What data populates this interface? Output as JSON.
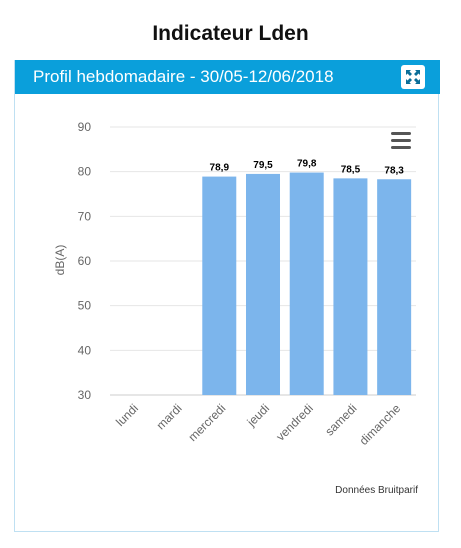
{
  "page": {
    "title": "Indicateur Lden"
  },
  "panel": {
    "title": "Profil hebdomadaire - 30/05-12/06/2018",
    "expand_icon": "fullscreen-expand-icon",
    "menu_icon": "hamburger-menu-icon"
  },
  "chart_data": {
    "type": "bar",
    "categories": [
      "lundi",
      "mardi",
      "mercredi",
      "jeudi",
      "vendredi",
      "samedi",
      "dimanche"
    ],
    "values": [
      null,
      null,
      78.9,
      79.5,
      79.8,
      78.5,
      78.3
    ],
    "data_labels": [
      "",
      "",
      "78,9",
      "79,5",
      "79,8",
      "78,5",
      "78,3"
    ],
    "ylabel": "dB(A)",
    "ylim": [
      30,
      90
    ],
    "yticks": [
      30,
      40,
      50,
      60,
      70,
      80,
      90
    ],
    "grid": true,
    "bar_color": "#7cb5ec",
    "credit": "Données Bruitparif"
  }
}
